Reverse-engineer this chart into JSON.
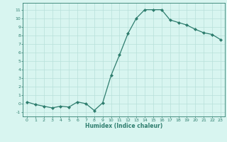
{
  "x": [
    0,
    1,
    2,
    3,
    4,
    5,
    6,
    7,
    8,
    9,
    10,
    11,
    12,
    13,
    14,
    15,
    16,
    17,
    18,
    19,
    20,
    21,
    22,
    23
  ],
  "y": [
    0.2,
    -0.1,
    -0.3,
    -0.5,
    -0.3,
    -0.4,
    0.2,
    0.0,
    -0.8,
    0.1,
    3.3,
    5.7,
    8.2,
    10.0,
    11.0,
    11.0,
    11.0,
    9.8,
    9.5,
    9.2,
    8.7,
    8.3,
    8.1,
    7.5
  ],
  "xlabel": "Humidex (Indice chaleur)",
  "line_color": "#2e7d6e",
  "marker_color": "#2e7d6e",
  "bg_color": "#d8f5f0",
  "grid_color": "#b8e0da",
  "ylim": [
    -1.5,
    11.8
  ],
  "xlim": [
    -0.5,
    23.5
  ],
  "yticks": [
    -1,
    0,
    1,
    2,
    3,
    4,
    5,
    6,
    7,
    8,
    9,
    10,
    11
  ],
  "xticks": [
    0,
    1,
    2,
    3,
    4,
    5,
    6,
    7,
    8,
    9,
    10,
    11,
    12,
    13,
    14,
    15,
    16,
    17,
    18,
    19,
    20,
    21,
    22,
    23
  ]
}
